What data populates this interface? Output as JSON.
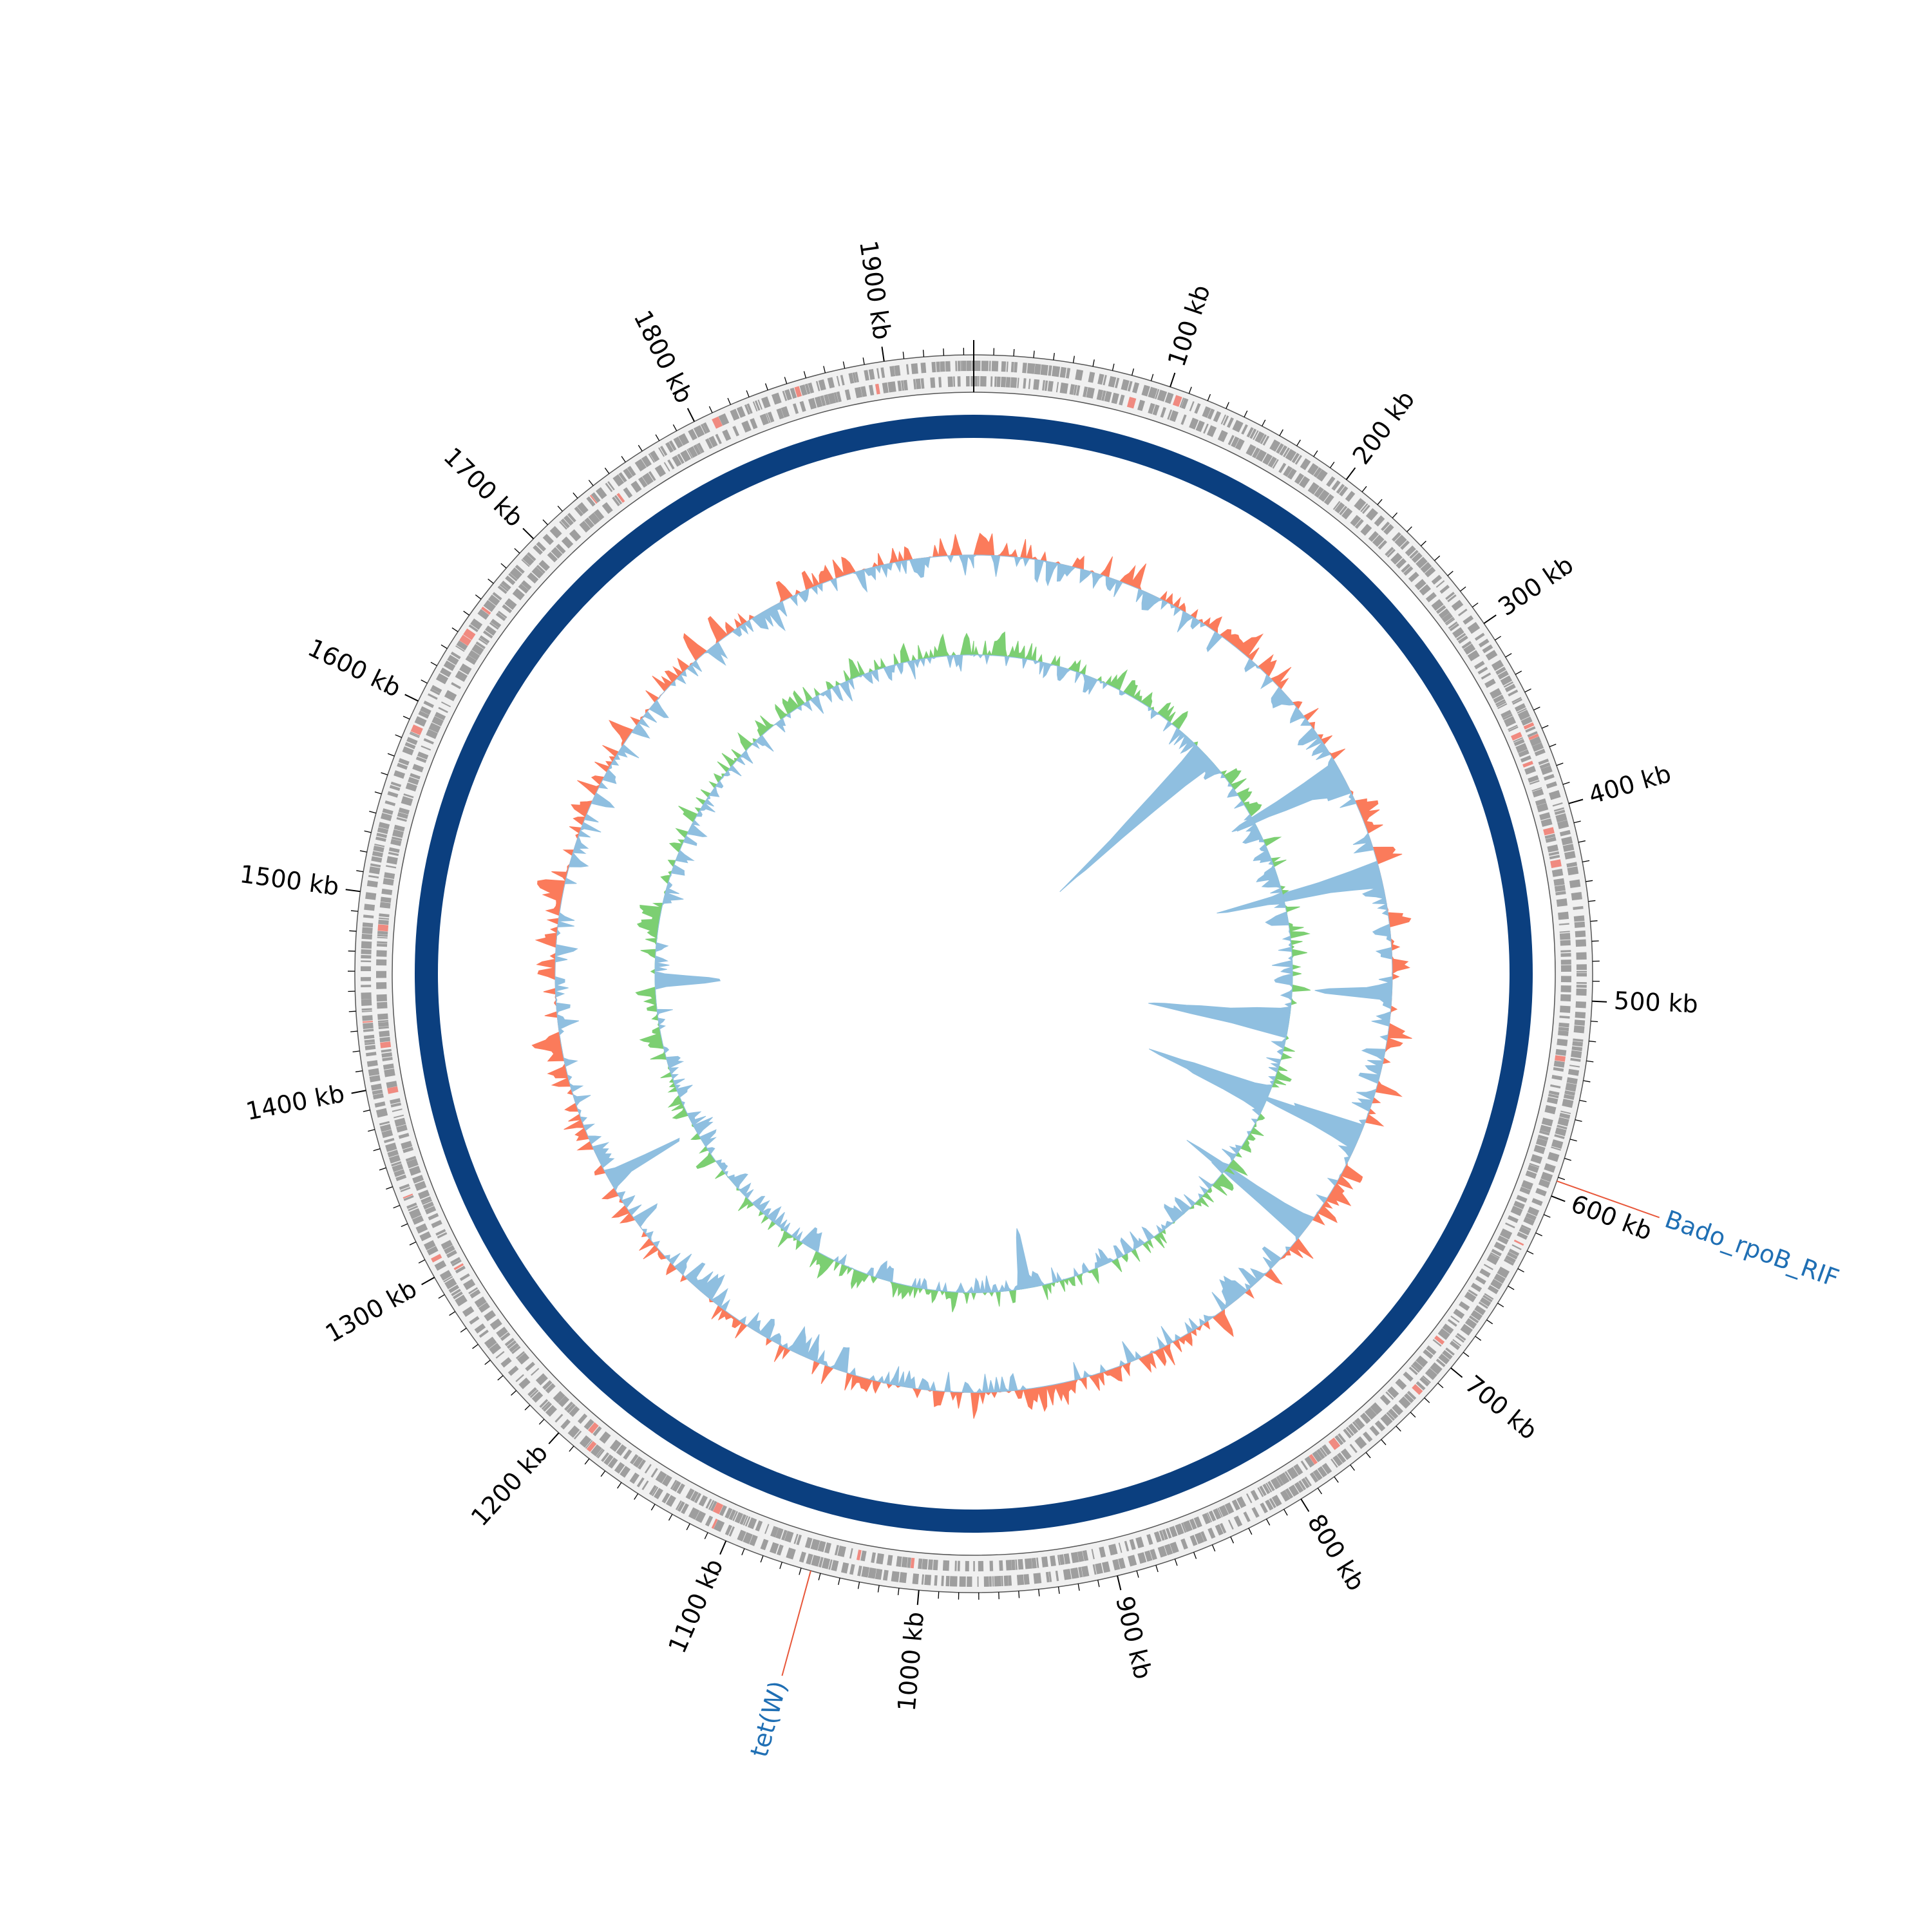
{
  "map": {
    "genome_length_kb": 1945,
    "tick_labels": [
      {
        "kb": 100,
        "text": "100 kb"
      },
      {
        "kb": 200,
        "text": "200 kb"
      },
      {
        "kb": 300,
        "text": "300 kb"
      },
      {
        "kb": 400,
        "text": "400 kb"
      },
      {
        "kb": 500,
        "text": "500 kb"
      },
      {
        "kb": 600,
        "text": "600 kb"
      },
      {
        "kb": 700,
        "text": "700 kb"
      },
      {
        "kb": 800,
        "text": "800 kb"
      },
      {
        "kb": 900,
        "text": "900 kb"
      },
      {
        "kb": 1000,
        "text": "1000 kb"
      },
      {
        "kb": 1100,
        "text": "1100 kb"
      },
      {
        "kb": 1200,
        "text": "1200 kb"
      },
      {
        "kb": 1300,
        "text": "1300 kb"
      },
      {
        "kb": 1400,
        "text": "1400 kb"
      },
      {
        "kb": 1500,
        "text": "1500 kb"
      },
      {
        "kb": 1600,
        "text": "1600 kb"
      },
      {
        "kb": 1700,
        "text": "1700 kb"
      },
      {
        "kb": 1800,
        "text": "1800 kb"
      },
      {
        "kb": 1900,
        "text": "1900 kb"
      }
    ],
    "minor_tick_step_kb": 10,
    "annotations": [
      {
        "label": "Bado_rpoB_RIF",
        "kb": 592,
        "color": "#1f6fb4",
        "leader_color": "#e8573a"
      },
      {
        "label": "tet(W)",
        "kb": 1055,
        "color": "#1f6fb4",
        "leader_color": "#e8573a"
      }
    ],
    "colors": {
      "backbone": "#0b3f7f",
      "cds": "#9e9e9e",
      "cds_highlight": "#f08a80",
      "ring_background": "#f0f0f0",
      "gc_content_positive": "#fb7b5b",
      "gc_content_negative": "#8fbfe0",
      "gc_skew_positive": "#7ccf72",
      "gc_skew_negative": "#8fbfe0",
      "tick": "#000000"
    }
  }
}
